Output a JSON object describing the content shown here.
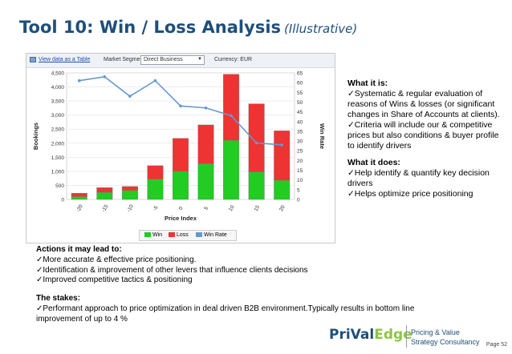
{
  "slide": {
    "title": "Tool 10: Win / Loss Analysis",
    "subtitle": "(Illustrative)"
  },
  "toolbar": {
    "view_table_link": "View data as a Table",
    "segment_label": "Market Segment:",
    "segment_value": "Direct Business",
    "currency": "Currency: EUR"
  },
  "legend": {
    "win": "Win",
    "loss": "Loss",
    "win_rate": "Win Rate"
  },
  "colors": {
    "win": "#22cc22",
    "loss": "#ee3333",
    "win_rate": "#6699cc",
    "title": "#1f4e79",
    "logo_accent": "#8cc63e"
  },
  "chart_data": {
    "type": "bar",
    "stacked": true,
    "title": "",
    "xlabel": "Price Index",
    "ylabel": "Bookings",
    "y2label": "Win Rate",
    "categories": [
      "-20",
      "-15",
      "-10",
      "-5",
      "0",
      "5",
      "10",
      "15",
      "20"
    ],
    "ylim": [
      0,
      4500
    ],
    "yticks": [
      "0",
      "500",
      "1,000",
      "1,500",
      "2,000",
      "2,500",
      "3,000",
      "3,500",
      "4,000",
      "4,500"
    ],
    "y2lim": [
      0,
      65
    ],
    "y2ticks": [
      "0",
      "5",
      "10",
      "15",
      "20",
      "25",
      "30",
      "35",
      "40",
      "45",
      "50",
      "55",
      "60",
      "65"
    ],
    "series": [
      {
        "name": "Win",
        "kind": "bar",
        "axis": "left",
        "values": [
          100,
          250,
          320,
          720,
          1000,
          1270,
          2100,
          980,
          680
        ]
      },
      {
        "name": "Loss",
        "kind": "bar",
        "axis": "left",
        "values": [
          120,
          170,
          140,
          480,
          1170,
          1380,
          2350,
          2420,
          1760
        ]
      },
      {
        "name": "Win Rate",
        "kind": "line",
        "axis": "right",
        "values": [
          61,
          63,
          53,
          61,
          48,
          47,
          43,
          29,
          28
        ]
      }
    ],
    "grid": true,
    "legend_position": "bottom"
  },
  "what_it_is": {
    "heading": "What it is:",
    "bullets": [
      "✓Systematic & regular evaluation of reasons of Wins & losses (or significant changes in Share of Accounts at clients).",
      "✓Criteria will include our & competitive prices but also conditions & buyer profile to identify drivers"
    ]
  },
  "what_it_does": {
    "heading": "What it does:",
    "bullets": [
      "✓Help identify & quantify key decision drivers",
      "✓Helps optimize price positioning"
    ]
  },
  "actions": {
    "heading": "Actions it may lead to:",
    "bullets": [
      "✓More accurate & effective price positioning.",
      "✓Identification & improvement of other levers that influence clients decisions",
      "✓Improved competitive tactics & positioning"
    ]
  },
  "stakes": {
    "heading": "The stakes:",
    "bullets": [
      "✓Performant approach to price optimization in deal driven B2B environment.Typically results in bottom line improvement of up to 4 %"
    ]
  },
  "footer": {
    "logo_part1": "PriVal",
    "logo_part2": "Edge",
    "tagline_line1": "Pricing & Value",
    "tagline_line2": "Strategy Consultancy",
    "page": "Page 52"
  }
}
